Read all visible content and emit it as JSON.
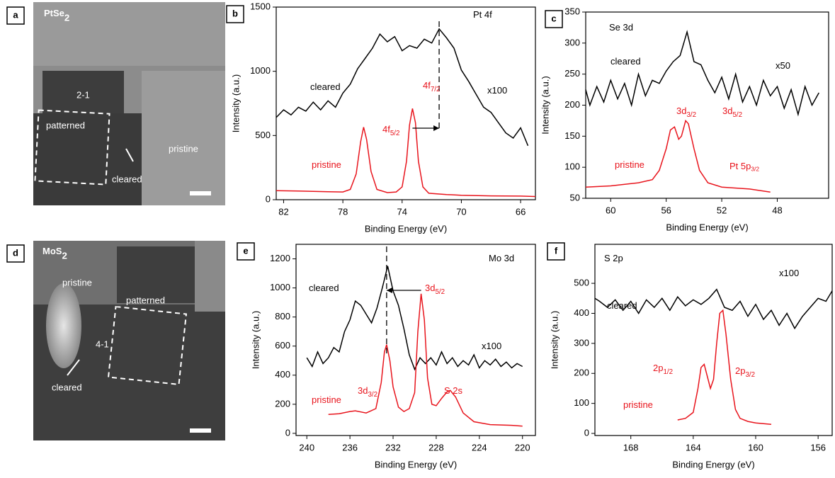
{
  "images": [
    {
      "label": "a",
      "title": {
        "text": "PtSe",
        "sub": "2"
      },
      "annotations": [
        "patterned",
        "pristine",
        "cleared",
        "2-1"
      ]
    },
    {
      "label": "d",
      "title": {
        "text": "MoS",
        "sub": "2"
      },
      "annotations": [
        "pristine",
        "patterned",
        "cleared",
        "4-1"
      ]
    }
  ],
  "chart_data": [
    {
      "type": "line",
      "label": "b",
      "xlabel": "Binding Energy (eV)",
      "ylabel": "Intensity (a.u.)",
      "xlim": [
        82.5,
        65
      ],
      "xticks": [
        82,
        78,
        74,
        70,
        66
      ],
      "ylim": [
        0,
        1500
      ],
      "yticks": [
        0,
        500,
        1000,
        1500
      ],
      "reference_line": 71.5,
      "annotations": [
        {
          "text": "Pt 4f",
          "color": "#000000"
        },
        {
          "text": "cleared",
          "color": "#000000"
        },
        {
          "text": "x100",
          "color": "#000000"
        },
        {
          "text": "pristine",
          "color": "#e8141c"
        },
        {
          "text": "4f",
          "sub": "5/2",
          "color": "#e8141c"
        },
        {
          "text": "4f",
          "sub": "7/2",
          "color": "#e8141c"
        }
      ],
      "series": [
        {
          "color": "#000000",
          "x": [
            82.5,
            82,
            81.5,
            81,
            80.5,
            80,
            79.5,
            79,
            78.5,
            78,
            77.5,
            77,
            76.5,
            76,
            75.5,
            75,
            74.5,
            74,
            73.5,
            73,
            72.5,
            72,
            71.5,
            71,
            70.5,
            70,
            69.5,
            69,
            68.5,
            68,
            67.5,
            67,
            66.5,
            66,
            65.5
          ],
          "values": [
            640,
            700,
            660,
            720,
            690,
            760,
            700,
            770,
            720,
            830,
            900,
            1020,
            1100,
            1180,
            1290,
            1230,
            1270,
            1160,
            1200,
            1180,
            1250,
            1220,
            1330,
            1260,
            1180,
            1010,
            920,
            820,
            720,
            680,
            600,
            520,
            480,
            560,
            420
          ]
        },
        {
          "color": "#e8141c",
          "x": [
            82.5,
            81,
            80,
            79,
            78,
            77.5,
            77.1,
            76.8,
            76.6,
            76.4,
            76.1,
            75.7,
            75,
            74.4,
            74,
            73.7,
            73.5,
            73.3,
            73.1,
            72.9,
            72.6,
            72.2,
            71,
            70,
            68,
            66,
            65
          ],
          "values": [
            70,
            68,
            65,
            62,
            60,
            80,
            200,
            450,
            565,
            470,
            220,
            80,
            55,
            60,
            100,
            300,
            580,
            710,
            600,
            300,
            100,
            50,
            40,
            35,
            30,
            28,
            25
          ]
        }
      ]
    },
    {
      "type": "line",
      "label": "c",
      "xlabel": "Binding Energy (eV)",
      "ylabel": "Intensity (a.u.)",
      "xlim": [
        61.8,
        44.3
      ],
      "xticks": [
        60,
        56,
        52,
        48
      ],
      "ylim": [
        50,
        350
      ],
      "yticks": [
        50,
        100,
        150,
        200,
        250,
        300,
        350
      ],
      "annotations": [
        {
          "text": "Se 3d",
          "color": "#000000"
        },
        {
          "text": "cleared",
          "color": "#000000"
        },
        {
          "text": "x50",
          "color": "#000000"
        },
        {
          "text": "pristine",
          "color": "#e8141c"
        },
        {
          "text": "3d",
          "sub": "3/2",
          "color": "#e8141c"
        },
        {
          "text": "3d",
          "sub": "5/2",
          "color": "#e8141c"
        },
        {
          "text": "Pt 5p",
          "sub": "3/2",
          "color": "#e8141c"
        }
      ],
      "series": [
        {
          "color": "#000000",
          "x": [
            61.8,
            61.5,
            61,
            60.5,
            60,
            59.5,
            59,
            58.5,
            58,
            57.5,
            57,
            56.5,
            56,
            55.5,
            55,
            54.5,
            54,
            53.5,
            53,
            52.5,
            52,
            51.5,
            51,
            50.5,
            50,
            49.5,
            49,
            48.5,
            48,
            47.5,
            47,
            46.5,
            46,
            45.5,
            45
          ],
          "values": [
            225,
            200,
            230,
            205,
            240,
            210,
            235,
            200,
            250,
            215,
            240,
            235,
            255,
            270,
            280,
            318,
            270,
            265,
            240,
            220,
            245,
            210,
            250,
            205,
            230,
            200,
            240,
            215,
            230,
            195,
            225,
            185,
            230,
            200,
            220
          ]
        },
        {
          "color": "#e8141c",
          "x": [
            61.8,
            60,
            58,
            57,
            56.5,
            56,
            55.7,
            55.4,
            55.1,
            54.9,
            54.6,
            54.4,
            54,
            53.6,
            53,
            52,
            50,
            48.5
          ],
          "values": [
            68,
            70,
            75,
            80,
            95,
            130,
            160,
            165,
            145,
            150,
            175,
            170,
            130,
            95,
            75,
            68,
            65,
            60
          ]
        }
      ]
    },
    {
      "type": "line",
      "label": "e",
      "xlabel": "Binding Energy (eV)",
      "ylabel": "Intensity (a.u.)",
      "xlim": [
        241,
        218.8
      ],
      "xticks": [
        240,
        236,
        232,
        228,
        224,
        220
      ],
      "ylim": [
        -15,
        1300
      ],
      "yticks": [
        0,
        200,
        400,
        600,
        800,
        1000,
        1200
      ],
      "reference_line": 232.6,
      "annotations": [
        {
          "text": "Mo 3d",
          "color": "#000000"
        },
        {
          "text": "cleared",
          "color": "#000000"
        },
        {
          "text": "x100",
          "color": "#000000"
        },
        {
          "text": "pristine",
          "color": "#e8141c"
        },
        {
          "text": "3d",
          "sub": "3/2",
          "color": "#e8141c"
        },
        {
          "text": "3d",
          "sub": "5/2",
          "color": "#e8141c"
        },
        {
          "text": "S 2s",
          "color": "#e8141c"
        }
      ],
      "series": [
        {
          "color": "#000000",
          "x": [
            240,
            239.5,
            239,
            238.5,
            238,
            237.5,
            237,
            236.5,
            236,
            235.5,
            235,
            234.5,
            234,
            233.5,
            233,
            232.5,
            232,
            231.5,
            231,
            230.5,
            230,
            229.5,
            229,
            228.5,
            228,
            227.5,
            227,
            226.5,
            226,
            225.5,
            225,
            224.5,
            224,
            223.5,
            223,
            222.5,
            222,
            221.5,
            221,
            220.5,
            220
          ],
          "values": [
            520,
            460,
            560,
            480,
            520,
            590,
            560,
            700,
            780,
            910,
            880,
            820,
            760,
            860,
            1000,
            1150,
            980,
            880,
            720,
            540,
            440,
            520,
            480,
            520,
            470,
            560,
            480,
            520,
            460,
            500,
            470,
            540,
            450,
            500,
            470,
            510,
            460,
            490,
            450,
            480,
            460
          ]
        },
        {
          "color": "#e8141c",
          "x": [
            238,
            237,
            236,
            235.5,
            234.5,
            233.6,
            233.1,
            232.8,
            232.6,
            232.3,
            232,
            231.5,
            231,
            230.5,
            230,
            229.7,
            229.4,
            229.1,
            228.8,
            228.4,
            228,
            227.5,
            227,
            226.7,
            226.2,
            225.5,
            224.5,
            223,
            221,
            220
          ],
          "values": [
            130,
            135,
            150,
            155,
            140,
            170,
            350,
            560,
            610,
            500,
            320,
            180,
            150,
            170,
            280,
            700,
            960,
            780,
            380,
            200,
            190,
            240,
            285,
            295,
            250,
            140,
            80,
            60,
            55,
            50
          ]
        }
      ]
    },
    {
      "type": "line",
      "label": "f",
      "xlabel": "Binding Energy (eV)",
      "ylabel": "Intensity (a.u.)",
      "xlim": [
        170.3,
        155.1
      ],
      "xticks": [
        168,
        164,
        160,
        156
      ],
      "ylim": [
        -7,
        630
      ],
      "yticks": [
        0,
        100,
        200,
        300,
        400,
        500
      ],
      "annotations": [
        {
          "text": "S 2p",
          "color": "#000000"
        },
        {
          "text": "x100",
          "color": "#000000"
        },
        {
          "text": "cleared",
          "color": "#000000"
        },
        {
          "text": "pristine",
          "color": "#e8141c"
        },
        {
          "text": "2p",
          "sub": "1/2",
          "color": "#e8141c"
        },
        {
          "text": "2p",
          "sub": "3/2",
          "color": "#e8141c"
        }
      ],
      "series": [
        {
          "color": "#000000",
          "x": [
            170.3,
            170,
            169.5,
            169,
            168.5,
            168,
            167.5,
            167,
            166.5,
            166,
            165.5,
            165,
            164.5,
            164,
            163.5,
            163,
            162.5,
            162,
            161.5,
            161,
            160.5,
            160,
            159.5,
            159,
            158.5,
            158,
            157.5,
            157,
            156.5,
            156,
            155.5,
            155.1
          ],
          "values": [
            450,
            440,
            420,
            445,
            410,
            440,
            400,
            445,
            420,
            450,
            410,
            455,
            425,
            445,
            430,
            450,
            480,
            420,
            410,
            440,
            390,
            430,
            380,
            410,
            360,
            400,
            350,
            390,
            420,
            450,
            440,
            475
          ]
        },
        {
          "color": "#e8141c",
          "x": [
            165,
            164.5,
            164,
            163.7,
            163.5,
            163.3,
            163.1,
            162.9,
            162.7,
            162.5,
            162.3,
            162.1,
            161.9,
            161.6,
            161.3,
            161,
            160.5,
            160,
            159
          ],
          "values": [
            45,
            50,
            70,
            150,
            220,
            230,
            190,
            150,
            180,
            300,
            400,
            410,
            330,
            180,
            80,
            50,
            40,
            35,
            30
          ]
        }
      ]
    }
  ]
}
